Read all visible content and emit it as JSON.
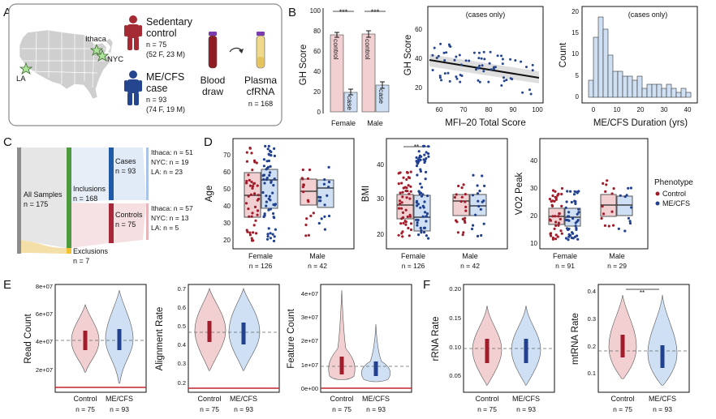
{
  "colors": {
    "control": "#a11d2b",
    "case": "#22418f",
    "control_fill": "#f2d0d2",
    "case_fill": "#cfe0f5",
    "sedentary_icon": "#a42a33",
    "mecfs_icon": "#25468f",
    "incl_green": "#4e9a3e",
    "cases_blue": "#1f5aa8",
    "controls_red": "#a8283a",
    "excl_yellow": "#f1c232"
  },
  "panel_a": {
    "letter": "A",
    "cities": [
      "Ithaca",
      "NYC",
      "LA"
    ],
    "control": {
      "title1": "Sedentary",
      "title2": "control",
      "n": "n = 75",
      "detail": "(52 F, 23 M)"
    },
    "case": {
      "title1": "ME/CFS",
      "title2": "case",
      "n": "n = 93",
      "detail": "(74 F, 19 M)"
    },
    "blood": {
      "line1": "Blood",
      "line2": "draw"
    },
    "plasma": {
      "line1": "Plasma",
      "line2": "cfRNA",
      "n": "n = 168"
    }
  },
  "panel_b": {
    "letter": "B",
    "bar_chart": {
      "ylabel": "GH Score",
      "yticks": [
        "0",
        "20",
        "40",
        "60",
        "80",
        "100"
      ],
      "groups": [
        "Female",
        "Male"
      ],
      "inner_labels": [
        "control",
        "case",
        "control",
        "case"
      ],
      "sig": [
        "***",
        "***"
      ]
    },
    "scatter": {
      "title": "(cases only)",
      "xlabel": "MFI–20 Total Score",
      "ylabel": "GH Score",
      "xticks": [
        "60",
        "70",
        "80",
        "90",
        "100"
      ],
      "yticks": [
        "20",
        "40",
        "60"
      ]
    },
    "histogram": {
      "title": "(cases only)",
      "xlabel": "ME/CFS Duration (yrs)",
      "ylabel": "Count",
      "xticks": [
        "0",
        "10",
        "20",
        "30",
        "40"
      ],
      "yticks": [
        "0",
        "5",
        "10",
        "15",
        "20"
      ]
    }
  },
  "panel_c": {
    "letter": "C",
    "all": "All Samples",
    "all_n": "n = 175",
    "inclusions": "Inclusions",
    "inclusions_n": "n = 168",
    "exclusions": "Exclusions",
    "exclusions_n": "n = 7",
    "cases": "Cases",
    "cases_n": "n = 93",
    "controls": "Controls",
    "controls_n": "n = 75",
    "cases_sites": [
      "Ithaca: n = 51",
      "NYC: n = 19",
      "LA: n = 23"
    ],
    "controls_sites": [
      "Ithaca: n = 57",
      "NYC: n = 13",
      "LA: n = 5"
    ]
  },
  "panel_d": {
    "letter": "D",
    "plots": [
      {
        "ylabel": "Age",
        "yticks": [
          "20",
          "30",
          "40",
          "50",
          "60",
          "70"
        ],
        "groups": [
          "Female",
          "Male"
        ],
        "ns": [
          "n = 126",
          "n = 42"
        ],
        "sig": ""
      },
      {
        "ylabel": "BMI",
        "yticks": [
          "20",
          "30",
          "40"
        ],
        "groups": [
          "Female",
          "Male"
        ],
        "ns": [
          "n = 126",
          "n = 42"
        ],
        "sig": "**"
      },
      {
        "ylabel": "VO2 Peak",
        "yticks": [
          "10",
          "20",
          "30",
          "40"
        ],
        "groups": [
          "Female",
          "Male"
        ],
        "ns": [
          "n = 91",
          "n = 29"
        ],
        "sig": ""
      }
    ],
    "legend": {
      "title": "Phenotype",
      "items": [
        "Control",
        "ME/CFS"
      ]
    }
  },
  "panel_e": {
    "letter": "E",
    "plots": [
      {
        "ylabel": "Read Count",
        "yticks": [
          "2e+07",
          "4e+07",
          "6e+07",
          "8e+07"
        ]
      },
      {
        "ylabel": "Alignment Rate",
        "yticks": [
          "0.2",
          "0.3",
          "0.4",
          "0.5",
          "0.6",
          "0.7"
        ]
      },
      {
        "ylabel": "Feature Count",
        "yticks": [
          "0e+00",
          "1e+07",
          "2e+07",
          "3e+07",
          "4e+07"
        ]
      }
    ],
    "groups": [
      "Control",
      "ME/CFS"
    ],
    "ns": [
      "n = 75",
      "n = 93"
    ]
  },
  "panel_f": {
    "letter": "F",
    "plots": [
      {
        "ylabel": "rRNA Rate",
        "yticks": [
          "0.05",
          "0.10",
          "0.15",
          "0.20"
        ],
        "sig": ""
      },
      {
        "ylabel": "mtRNA Rate",
        "yticks": [
          "0.1",
          "0.2",
          "0.3",
          "0.4"
        ],
        "sig": "**"
      }
    ],
    "groups": [
      "Control",
      "ME/CFS"
    ],
    "ns": [
      "n = 75",
      "n = 93"
    ]
  }
}
